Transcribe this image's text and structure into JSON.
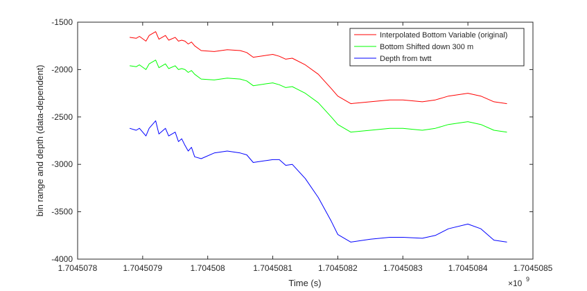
{
  "chart_data": {
    "type": "line",
    "title": "",
    "xlabel": "Time (s)",
    "ylabel": "bin range and depth (data-dependent)",
    "x_exponent_label": "×10",
    "x_exponent_power": "9",
    "xlim": [
      1.7045078,
      1.7045085
    ],
    "ylim": [
      -4000,
      -1500
    ],
    "xticks": [
      1.7045078,
      1.7045079,
      1.704508,
      1.7045081,
      1.7045082,
      1.7045083,
      1.7045084,
      1.7045085
    ],
    "xtick_labels": [
      "1.7045078",
      "1.7045079",
      "1.704508",
      "1.7045081",
      "1.7045082",
      "1.7045083",
      "1.7045084",
      "1.7045085"
    ],
    "yticks": [
      -4000,
      -3500,
      -3000,
      -2500,
      -2000,
      -1500
    ],
    "ytick_labels": [
      "-4000",
      "-3500",
      "-3000",
      "-2500",
      "-2000",
      "-1500"
    ],
    "grid": false,
    "legend_position": "top-right",
    "series": [
      {
        "name": "Interpolated Bottom Variable (original)",
        "color": "#ff0000",
        "x": [
          1.70450788,
          1.70450789,
          1.704507895,
          1.704507905,
          1.70450791,
          1.70450792,
          1.704507925,
          1.704507935,
          1.70450794,
          1.70450795,
          1.704507955,
          1.70450796,
          1.704507965,
          1.70450797,
          1.704507975,
          1.70450798,
          1.70450799,
          1.70450801,
          1.70450803,
          1.70450805,
          1.70450806,
          1.70450807,
          1.70450809,
          1.7045081,
          1.70450811,
          1.70450812,
          1.70450813,
          1.70450815,
          1.70450817,
          1.70450819,
          1.7045082,
          1.70450822,
          1.70450825,
          1.70450828,
          1.7045083,
          1.70450833,
          1.70450835,
          1.70450837,
          1.7045084,
          1.70450842,
          1.70450844,
          1.70450846
        ],
        "y": [
          -1660,
          -1670,
          -1650,
          -1700,
          -1640,
          -1600,
          -1680,
          -1640,
          -1690,
          -1660,
          -1700,
          -1690,
          -1700,
          -1730,
          -1710,
          -1750,
          -1800,
          -1810,
          -1790,
          -1800,
          -1820,
          -1870,
          -1850,
          -1840,
          -1860,
          -1890,
          -1880,
          -1950,
          -2050,
          -2200,
          -2280,
          -2360,
          -2340,
          -2320,
          -2320,
          -2340,
          -2320,
          -2280,
          -2250,
          -2280,
          -2340,
          -2360
        ]
      },
      {
        "name": "Bottom Shifted down 300 m",
        "color": "#00ff00",
        "x": [
          1.70450788,
          1.70450789,
          1.704507895,
          1.704507905,
          1.70450791,
          1.70450792,
          1.704507925,
          1.704507935,
          1.70450794,
          1.70450795,
          1.704507955,
          1.70450796,
          1.704507965,
          1.70450797,
          1.704507975,
          1.70450798,
          1.70450799,
          1.70450801,
          1.70450803,
          1.70450805,
          1.70450806,
          1.70450807,
          1.70450809,
          1.7045081,
          1.70450811,
          1.70450812,
          1.70450813,
          1.70450815,
          1.70450817,
          1.70450819,
          1.7045082,
          1.70450822,
          1.70450825,
          1.70450828,
          1.7045083,
          1.70450833,
          1.70450835,
          1.70450837,
          1.7045084,
          1.70450842,
          1.70450844,
          1.70450846
        ],
        "y": [
          -1960,
          -1970,
          -1950,
          -2000,
          -1940,
          -1900,
          -1980,
          -1940,
          -1990,
          -1960,
          -2000,
          -1990,
          -2000,
          -2030,
          -2010,
          -2050,
          -2100,
          -2110,
          -2090,
          -2100,
          -2120,
          -2170,
          -2150,
          -2140,
          -2160,
          -2190,
          -2180,
          -2250,
          -2350,
          -2500,
          -2580,
          -2660,
          -2640,
          -2620,
          -2620,
          -2640,
          -2620,
          -2580,
          -2550,
          -2580,
          -2640,
          -2660
        ]
      },
      {
        "name": "Depth from twtt",
        "color": "#0000ff",
        "x": [
          1.70450788,
          1.70450789,
          1.704507895,
          1.704507905,
          1.70450791,
          1.70450792,
          1.704507925,
          1.704507935,
          1.70450794,
          1.70450795,
          1.704507955,
          1.70450796,
          1.704507965,
          1.70450797,
          1.704507975,
          1.70450798,
          1.70450799,
          1.70450801,
          1.70450803,
          1.70450805,
          1.70450806,
          1.70450807,
          1.70450809,
          1.7045081,
          1.70450811,
          1.70450812,
          1.70450813,
          1.70450815,
          1.70450817,
          1.70450819,
          1.7045082,
          1.70450822,
          1.70450825,
          1.70450828,
          1.7045083,
          1.70450833,
          1.70450835,
          1.70450837,
          1.7045084,
          1.70450842,
          1.70450844,
          1.70450846
        ],
        "y": [
          -2620,
          -2640,
          -2620,
          -2700,
          -2620,
          -2540,
          -2680,
          -2620,
          -2700,
          -2660,
          -2760,
          -2730,
          -2800,
          -2860,
          -2820,
          -2920,
          -2940,
          -2880,
          -2860,
          -2880,
          -2900,
          -2980,
          -2960,
          -2950,
          -2950,
          -3010,
          -3000,
          -3150,
          -3350,
          -3600,
          -3740,
          -3820,
          -3790,
          -3770,
          -3770,
          -3780,
          -3750,
          -3680,
          -3630,
          -3680,
          -3800,
          -3820
        ]
      }
    ]
  }
}
